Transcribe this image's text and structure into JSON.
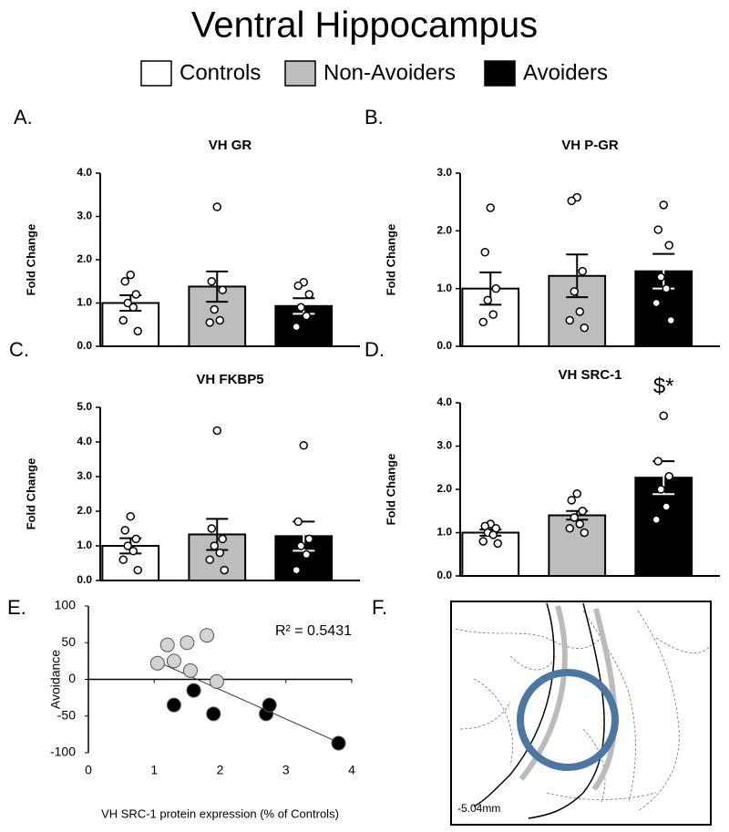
{
  "title": "Ventral Hippocampus",
  "groups": [
    {
      "name": "Controls",
      "color": "#ffffff"
    },
    {
      "name": "Non-Avoiders",
      "color": "#bdbdbd"
    },
    {
      "name": "Avoiders",
      "color": "#000000"
    }
  ],
  "chart_data": [
    {
      "type": "bar",
      "panel": "A.",
      "title": "VH GR",
      "ylabel": "Fold Change",
      "categories": [
        null,
        null,
        null
      ],
      "values": [
        1.0,
        1.38,
        0.93
      ],
      "errors": [
        0.18,
        0.35,
        0.18
      ],
      "points": [
        [
          1.65,
          1.5,
          1.2,
          1.0,
          0.9,
          0.6,
          0.35
        ],
        [
          3.22,
          1.5,
          1.3,
          0.85,
          0.6,
          0.55
        ],
        [
          1.48,
          1.4,
          1.2,
          0.9,
          0.7,
          0.45
        ]
      ],
      "ylim": [
        0,
        4
      ],
      "yticks": [
        {
          "value": 0,
          "label": "0.0"
        },
        {
          "value": 1,
          "label": "1.0"
        },
        {
          "value": 2,
          "label": "2.0"
        },
        {
          "value": 3,
          "label": "3.0"
        },
        {
          "value": 4,
          "label": "4.0"
        }
      ]
    },
    {
      "type": "bar",
      "panel": "B.",
      "title": "VH P-GR",
      "ylabel": "Fold Change",
      "categories": [
        null,
        null,
        null
      ],
      "values": [
        1.0,
        1.22,
        1.3
      ],
      "errors": [
        0.28,
        0.37,
        0.3
      ],
      "points": [
        [
          2.4,
          1.63,
          1.0,
          0.8,
          0.55,
          0.42
        ],
        [
          2.58,
          2.52,
          1.3,
          0.95,
          0.6,
          0.45,
          0.32
        ],
        [
          2.45,
          2.02,
          1.75,
          1.2,
          1.0,
          0.75,
          0.45
        ]
      ],
      "ylim": [
        0,
        3
      ],
      "yticks": [
        {
          "value": 0,
          "label": "0.0"
        },
        {
          "value": 1,
          "label": "1.0"
        },
        {
          "value": 2,
          "label": "2.0"
        },
        {
          "value": 3,
          "label": "3.0"
        }
      ]
    },
    {
      "type": "bar",
      "panel": "C.",
      "title": "VH FKBP5",
      "ylabel": "Fold Change",
      "categories": [
        null,
        null,
        null
      ],
      "values": [
        1.0,
        1.33,
        1.28
      ],
      "errors": [
        0.22,
        0.45,
        0.42
      ],
      "points": [
        [
          1.85,
          1.45,
          1.2,
          1.0,
          0.85,
          0.6,
          0.3
        ],
        [
          4.33,
          1.5,
          1.2,
          1.0,
          0.8,
          0.6,
          0.3
        ],
        [
          3.9,
          1.7,
          1.2,
          1.0,
          0.75,
          0.3
        ]
      ],
      "ylim": [
        0,
        5
      ],
      "yticks": [
        {
          "value": 0,
          "label": "0.0"
        },
        {
          "value": 1,
          "label": "1.0"
        },
        {
          "value": 2,
          "label": "2.0"
        },
        {
          "value": 3,
          "label": "3.0"
        },
        {
          "value": 4,
          "label": "4.0"
        },
        {
          "value": 5,
          "label": "5.0"
        }
      ]
    },
    {
      "type": "bar",
      "panel": "D.",
      "title": "VH SRC-1",
      "ylabel": "Fold Change",
      "categories": [
        null,
        null,
        null
      ],
      "values": [
        1.0,
        1.4,
        2.27
      ],
      "errors": [
        0.07,
        0.1,
        0.38
      ],
      "points": [
        [
          1.2,
          1.15,
          1.1,
          1.0,
          0.95,
          0.8,
          0.75
        ],
        [
          1.9,
          1.75,
          1.5,
          1.35,
          1.2,
          1.1,
          1.0
        ],
        [
          3.7,
          2.65,
          2.3,
          2.0,
          1.6,
          1.3
        ]
      ],
      "annotation": "$*",
      "ylim": [
        0,
        4
      ],
      "yticks": [
        {
          "value": 0,
          "label": "0.0"
        },
        {
          "value": 1,
          "label": "1.0"
        },
        {
          "value": 2,
          "label": "2.0"
        },
        {
          "value": 3,
          "label": "3.0"
        },
        {
          "value": 4,
          "label": "4.0"
        }
      ]
    },
    {
      "type": "scatter",
      "panel": "E.",
      "xlabel": "VH SRC-1 protein expression (% of Controls)",
      "ylabel": "Avoidance",
      "annotation": "R² = 0.5431",
      "series": [
        {
          "color": "#d3d3d3",
          "x": [
            1.05,
            1.2,
            1.3,
            1.5,
            1.55,
            1.8,
            1.95
          ],
          "y": [
            22,
            47,
            25,
            50,
            12,
            60,
            -3
          ]
        },
        {
          "color": "#000000",
          "x": [
            1.3,
            1.6,
            1.9,
            2.7,
            2.75,
            3.8
          ],
          "y": [
            -35,
            -15,
            -47,
            -47,
            -35,
            -87
          ]
        }
      ],
      "trendline": {
        "x": [
          1.05,
          3.8
        ],
        "y": [
          24,
          -86
        ]
      },
      "xlim": [
        0,
        4
      ],
      "xticks": [
        0,
        1,
        2,
        3,
        4
      ],
      "ylim": [
        -100,
        100
      ],
      "yticks": [
        -100,
        -50,
        0,
        50,
        100
      ]
    }
  ],
  "figure_f": {
    "panel": "F.",
    "label": "-5.04mm"
  }
}
